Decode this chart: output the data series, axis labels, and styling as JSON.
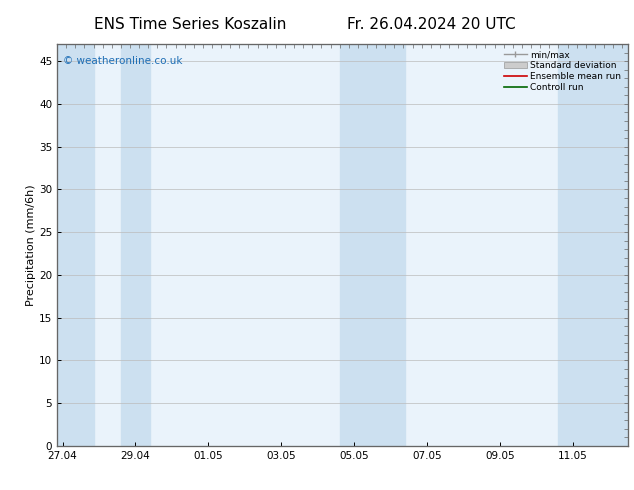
{
  "title_left": "ENS Time Series Koszalin",
  "title_right": "Fr. 26.04.2024 20 UTC",
  "ylabel": "Precipitation (mm/6h)",
  "ylim": [
    0,
    47
  ],
  "yticks": [
    0,
    5,
    10,
    15,
    20,
    25,
    30,
    35,
    40,
    45
  ],
  "xtick_labels": [
    "27.04",
    "29.04",
    "01.05",
    "03.05",
    "05.05",
    "07.05",
    "09.05",
    "11.05"
  ],
  "xtick_positions": [
    0,
    2,
    4,
    6,
    8,
    10,
    12,
    14
  ],
  "xlim": [
    -0.15,
    15.5
  ],
  "background_color": "#ffffff",
  "plot_bg_color": "#eaf3fb",
  "shading_color": "#cce0f0",
  "watermark": "© weatheronline.co.uk",
  "watermark_color": "#1e6eb5",
  "shading_bands": [
    [
      -0.15,
      0.85
    ],
    [
      1.6,
      2.4
    ],
    [
      7.6,
      9.4
    ],
    [
      13.6,
      15.5
    ]
  ],
  "total_x": 15.5,
  "title_fontsize": 11,
  "tick_labelsize": 7.5,
  "ylabel_fontsize": 8
}
